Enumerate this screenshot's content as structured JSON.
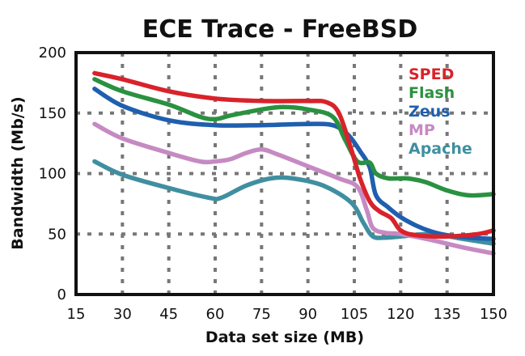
{
  "chart_data": {
    "type": "line",
    "title": "ECE Trace - FreeBSD",
    "xlabel": "Data set size (MB)",
    "ylabel": "Bandwidth (Mb/s)",
    "xlim": [
      15,
      150
    ],
    "ylim": [
      0,
      200
    ],
    "xticks": [
      "15",
      "30",
      "45",
      "60",
      "75",
      "90",
      "105",
      "120",
      "135",
      "150"
    ],
    "yticks": [
      "0",
      "50",
      "100",
      "150",
      "200"
    ],
    "grid": true,
    "legend_position": "top-right",
    "series": [
      {
        "name": "SPED",
        "color": "#d9222a",
        "points": [
          [
            21,
            183
          ],
          [
            30,
            178
          ],
          [
            45,
            168
          ],
          [
            60,
            162
          ],
          [
            75,
            160
          ],
          [
            90,
            160
          ],
          [
            96,
            159
          ],
          [
            100,
            150
          ],
          [
            104,
            120
          ],
          [
            107,
            95
          ],
          [
            110,
            77
          ],
          [
            113,
            69
          ],
          [
            117,
            63
          ],
          [
            120,
            53
          ],
          [
            125,
            49
          ],
          [
            135,
            48
          ],
          [
            145,
            50
          ],
          [
            150,
            53
          ]
        ]
      },
      {
        "name": "Flash",
        "color": "#2a9140",
        "points": [
          [
            21,
            178
          ],
          [
            30,
            168
          ],
          [
            45,
            157
          ],
          [
            55,
            147
          ],
          [
            60,
            145
          ],
          [
            65,
            148
          ],
          [
            75,
            153
          ],
          [
            82,
            155
          ],
          [
            90,
            153
          ],
          [
            98,
            147
          ],
          [
            102,
            128
          ],
          [
            106,
            110
          ],
          [
            110,
            109
          ],
          [
            112,
            100
          ],
          [
            116,
            96
          ],
          [
            122,
            96
          ],
          [
            128,
            93
          ],
          [
            135,
            86
          ],
          [
            142,
            82
          ],
          [
            150,
            83
          ]
        ]
      },
      {
        "name": "Zeus",
        "color": "#1f5fae",
        "points": [
          [
            21,
            170
          ],
          [
            30,
            156
          ],
          [
            45,
            144
          ],
          [
            60,
            140
          ],
          [
            75,
            140
          ],
          [
            90,
            141
          ],
          [
            98,
            140
          ],
          [
            103,
            132
          ],
          [
            107,
            118
          ],
          [
            110,
            105
          ],
          [
            112,
            82
          ],
          [
            116,
            72
          ],
          [
            120,
            64
          ],
          [
            125,
            57
          ],
          [
            130,
            52
          ],
          [
            135,
            49
          ],
          [
            142,
            47
          ],
          [
            150,
            46
          ]
        ]
      },
      {
        "name": "MP",
        "color": "#c68ac3",
        "points": [
          [
            21,
            141
          ],
          [
            30,
            129
          ],
          [
            45,
            117
          ],
          [
            55,
            110
          ],
          [
            60,
            110
          ],
          [
            65,
            112
          ],
          [
            70,
            117
          ],
          [
            75,
            120
          ],
          [
            80,
            116
          ],
          [
            90,
            106
          ],
          [
            100,
            96
          ],
          [
            106,
            89
          ],
          [
            109,
            70
          ],
          [
            111,
            55
          ],
          [
            115,
            51
          ],
          [
            120,
            50
          ],
          [
            130,
            45
          ],
          [
            140,
            39
          ],
          [
            150,
            34
          ]
        ]
      },
      {
        "name": "Apache",
        "color": "#3f8fa0",
        "points": [
          [
            21,
            110
          ],
          [
            30,
            99
          ],
          [
            45,
            88
          ],
          [
            58,
            80
          ],
          [
            62,
            80
          ],
          [
            70,
            90
          ],
          [
            78,
            96
          ],
          [
            85,
            96
          ],
          [
            95,
            90
          ],
          [
            104,
            76
          ],
          [
            108,
            59
          ],
          [
            111,
            48
          ],
          [
            115,
            47
          ],
          [
            120,
            48
          ],
          [
            130,
            50
          ],
          [
            140,
            46
          ],
          [
            150,
            42
          ]
        ]
      }
    ]
  }
}
